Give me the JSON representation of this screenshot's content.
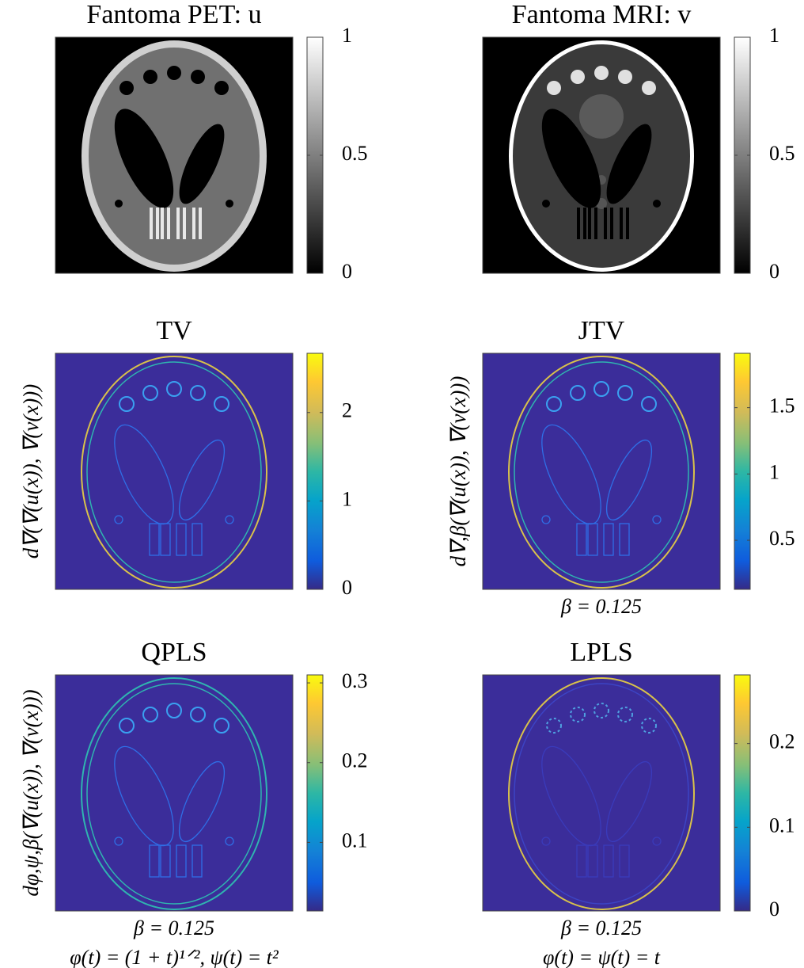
{
  "panels": [
    {
      "title": "Fantoma PET: u",
      "colormap": "gray",
      "clim": [
        0,
        1
      ],
      "ticks": [
        0,
        0.5,
        1
      ]
    },
    {
      "title": "Fantoma MRI: v",
      "colormap": "gray",
      "clim": [
        0,
        1
      ],
      "ticks": [
        0,
        0.5,
        1
      ]
    },
    {
      "title": "TV",
      "ylabel": "d∇(∇(u(x)), ∇(v(x)))",
      "colormap": "parula",
      "clim": [
        0,
        2.67
      ],
      "ticks": [
        0,
        1,
        2
      ]
    },
    {
      "title": "JTV",
      "ylabel": "d∇,β(∇(u(x)), ∇(v(x)))",
      "captions": [
        "β = 0.125"
      ],
      "colormap": "parula",
      "clim": [
        0.13,
        1.91
      ],
      "ticks": [
        0.5,
        1,
        1.5
      ]
    },
    {
      "title": "QPLS",
      "ylabel": "dφ,ψ,β(∇(u(x)), ∇(v(x)))",
      "captions": [
        "β = 0.125",
        "φ(t) = (1 + t)¹ᐟ², ψ(t) = t²"
      ],
      "colormap": "parula",
      "clim": [
        0.014,
        0.31
      ],
      "ticks": [
        0.1,
        0.2,
        0.3
      ]
    },
    {
      "title": "LPLS",
      "captions": [
        "β = 0.125",
        "φ(t) = ψ(t) = t"
      ],
      "colormap": "parula",
      "clim": [
        0,
        0.282
      ],
      "ticks": [
        0,
        0.1,
        0.2
      ]
    }
  ]
}
